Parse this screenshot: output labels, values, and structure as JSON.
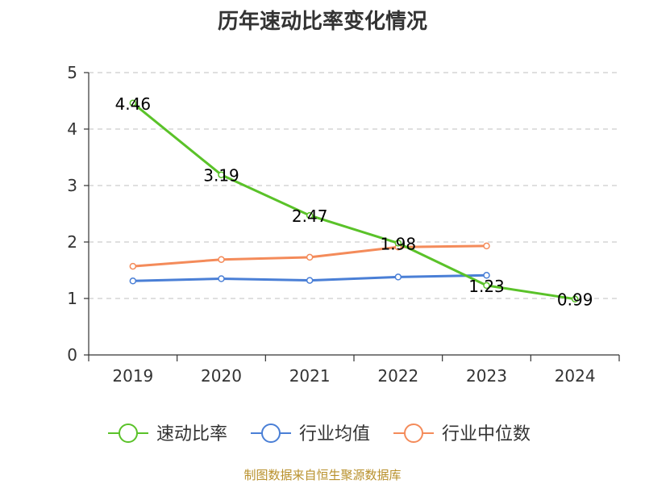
{
  "chart_data": {
    "type": "line",
    "title": "历年速动比率变化情况",
    "categories": [
      "2019",
      "2020",
      "2021",
      "2022",
      "2023",
      "2024"
    ],
    "ylim": [
      0,
      5
    ],
    "yticks": [
      0,
      1,
      2,
      3,
      4,
      5
    ],
    "grid": true,
    "legend_position": "bottom",
    "series": [
      {
        "name": "速动比率",
        "color": "#5ac229",
        "labeled": true,
        "values": [
          4.46,
          3.19,
          2.47,
          1.98,
          1.23,
          0.99
        ]
      },
      {
        "name": "行业均值",
        "color": "#4a7fd6",
        "labeled": false,
        "values": [
          1.31,
          1.35,
          1.32,
          1.38,
          1.41,
          null
        ]
      },
      {
        "name": "行业中位数",
        "color": "#f48b5a",
        "labeled": false,
        "values": [
          1.57,
          1.69,
          1.73,
          1.91,
          1.93,
          null
        ]
      }
    ]
  },
  "source": "制图数据来自恒生聚源数据库"
}
